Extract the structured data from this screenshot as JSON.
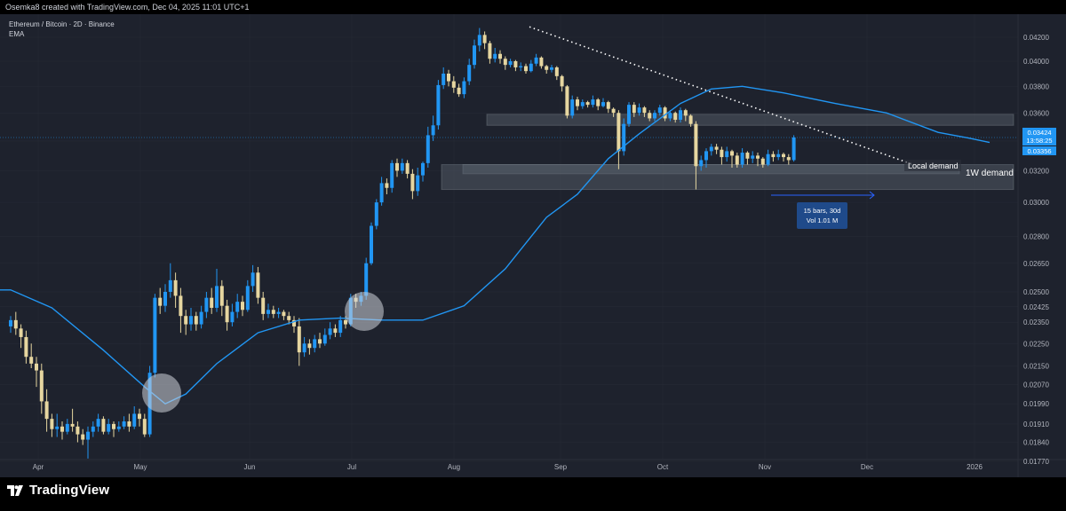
{
  "header": {
    "caption": "Osemka8 created with TradingView.com, Dec 04, 2025 11:01 UTC+1"
  },
  "legend": {
    "symbol": "Ethereum / Bitcoin · 2D · Binance",
    "indicator": "EMA"
  },
  "price_axis": {
    "ticks": [
      "0.04200",
      "0.04000",
      "0.03800",
      "0.03600",
      "0.03400",
      "0.03200",
      "0.03000",
      "0.02800",
      "0.02650",
      "0.02500",
      "0.02425",
      "0.02350",
      "0.02250",
      "0.02150",
      "0.02070",
      "0.01990",
      "0.01910",
      "0.01840",
      "0.01770"
    ],
    "last_price": "0.03424",
    "countdown": "13:58:25",
    "ema_value": "0.03356"
  },
  "time_axis": {
    "labels": [
      "Apr",
      "May",
      "Jun",
      "Jul",
      "Aug",
      "Sep",
      "Oct",
      "Nov",
      "Dec",
      "2026"
    ]
  },
  "annotations": {
    "local_demand": "Local demand",
    "weekly_demand": "1W demand",
    "measure_bars": "15 bars, 30d",
    "measure_vol": "Vol 1.01 M"
  },
  "colors": {
    "background": "#1e222d",
    "up_candle": "#2196f3",
    "down_candle": "#e6d6a0",
    "ema_line": "#2196f3",
    "zone_fill": "#5d6670",
    "trendline": "#ffffff"
  },
  "icons": {
    "logo": "tradingview-logo-icon"
  },
  "footer": {
    "brand": "TradingView"
  },
  "chart_data": {
    "type": "candlestick",
    "title": "Ethereum / Bitcoin · 2D · Binance",
    "scale": "log",
    "ylim": [
      0.0172,
      0.0432
    ],
    "x_labels": [
      "Apr",
      "May",
      "Jun",
      "Jul",
      "Aug",
      "Sep",
      "Oct",
      "Nov",
      "Dec",
      "2026"
    ],
    "series": [
      {
        "name": "EMA",
        "type": "line",
        "points": [
          [
            0,
            0.0251
          ],
          [
            8,
            0.0242
          ],
          [
            18,
            0.0222
          ],
          [
            26,
            0.0206
          ],
          [
            30,
            0.0199
          ],
          [
            34,
            0.0203
          ],
          [
            40,
            0.0216
          ],
          [
            48,
            0.023
          ],
          [
            56,
            0.0236
          ],
          [
            64,
            0.0237
          ],
          [
            72,
            0.0236
          ],
          [
            80,
            0.0236
          ],
          [
            88,
            0.0243
          ],
          [
            96,
            0.0262
          ],
          [
            104,
            0.0291
          ],
          [
            110,
            0.0305
          ],
          [
            116,
            0.0328
          ],
          [
            122,
            0.0345
          ],
          [
            130,
            0.0367
          ],
          [
            136,
            0.0378
          ],
          [
            142,
            0.038
          ],
          [
            150,
            0.0375
          ],
          [
            160,
            0.0367
          ],
          [
            170,
            0.036
          ],
          [
            180,
            0.0346
          ],
          [
            186,
            0.0342
          ],
          [
            190,
            0.0339
          ]
        ]
      }
    ],
    "candles": [
      [
        0.0233,
        0.0236,
        0.0238,
        0.023
      ],
      [
        0.0236,
        0.0232,
        0.024,
        0.0229
      ],
      [
        0.0232,
        0.0228,
        0.0234,
        0.0223
      ],
      [
        0.0228,
        0.0219,
        0.0231,
        0.0216
      ],
      [
        0.0219,
        0.0216,
        0.0225,
        0.0214
      ],
      [
        0.0216,
        0.0213,
        0.0219,
        0.0206
      ],
      [
        0.0213,
        0.02,
        0.0216,
        0.0195
      ],
      [
        0.02,
        0.0193,
        0.0205,
        0.0188
      ],
      [
        0.0193,
        0.0189,
        0.0195,
        0.0186
      ],
      [
        0.0189,
        0.019,
        0.0195,
        0.0186
      ],
      [
        0.019,
        0.0188,
        0.0192,
        0.0185
      ],
      [
        0.0188,
        0.0191,
        0.0193,
        0.0187
      ],
      [
        0.0191,
        0.019,
        0.0197,
        0.0188
      ],
      [
        0.019,
        0.0187,
        0.0192,
        0.0184
      ],
      [
        0.0187,
        0.0185,
        0.0189,
        0.0183
      ],
      [
        0.0185,
        0.0188,
        0.019,
        0.0178
      ],
      [
        0.0188,
        0.019,
        0.0192,
        0.0186
      ],
      [
        0.019,
        0.0193,
        0.0195,
        0.0188
      ],
      [
        0.0193,
        0.0188,
        0.0194,
        0.0187
      ],
      [
        0.0188,
        0.0191,
        0.0193,
        0.0187
      ],
      [
        0.0191,
        0.0189,
        0.0192,
        0.0186
      ],
      [
        0.0189,
        0.019,
        0.0192,
        0.0188
      ],
      [
        0.019,
        0.0192,
        0.0194,
        0.0189
      ],
      [
        0.0192,
        0.019,
        0.0195,
        0.0188
      ],
      [
        0.019,
        0.0195,
        0.0198,
        0.0189
      ],
      [
        0.0195,
        0.0193,
        0.0197,
        0.019
      ],
      [
        0.0193,
        0.0187,
        0.0195,
        0.0186
      ],
      [
        0.0187,
        0.0212,
        0.0215,
        0.0186
      ],
      [
        0.0212,
        0.0247,
        0.0249,
        0.021
      ],
      [
        0.0247,
        0.0243,
        0.0252,
        0.0239
      ],
      [
        0.0243,
        0.025,
        0.0254,
        0.024
      ],
      [
        0.025,
        0.0256,
        0.0265,
        0.0247
      ],
      [
        0.0256,
        0.0248,
        0.026,
        0.0242
      ],
      [
        0.0248,
        0.0238,
        0.0252,
        0.023
      ],
      [
        0.0238,
        0.0234,
        0.0241,
        0.0229
      ],
      [
        0.0234,
        0.0238,
        0.0242,
        0.0231
      ],
      [
        0.0238,
        0.0234,
        0.024,
        0.0231
      ],
      [
        0.0234,
        0.024,
        0.0243,
        0.0232
      ],
      [
        0.024,
        0.0247,
        0.025,
        0.0237
      ],
      [
        0.0247,
        0.0242,
        0.0252,
        0.0239
      ],
      [
        0.0242,
        0.0253,
        0.0262,
        0.024
      ],
      [
        0.0253,
        0.0243,
        0.0256,
        0.0238
      ],
      [
        0.0243,
        0.0235,
        0.0246,
        0.0231
      ],
      [
        0.0235,
        0.024,
        0.0244,
        0.0233
      ],
      [
        0.024,
        0.0245,
        0.0249,
        0.0237
      ],
      [
        0.0245,
        0.0241,
        0.0248,
        0.0238
      ],
      [
        0.0241,
        0.0253,
        0.0256,
        0.024
      ],
      [
        0.0253,
        0.026,
        0.0264,
        0.025
      ],
      [
        0.026,
        0.0247,
        0.0263,
        0.0244
      ],
      [
        0.0247,
        0.0239,
        0.025,
        0.0236
      ],
      [
        0.0239,
        0.0241,
        0.0244,
        0.0237
      ],
      [
        0.0241,
        0.0239,
        0.0243,
        0.0237
      ],
      [
        0.0239,
        0.024,
        0.0242,
        0.0237
      ],
      [
        0.024,
        0.0238,
        0.0241,
        0.0236
      ],
      [
        0.0238,
        0.0236,
        0.024,
        0.0234
      ],
      [
        0.0236,
        0.0233,
        0.0238,
        0.023
      ],
      [
        0.0233,
        0.0221,
        0.0237,
        0.0215
      ],
      [
        0.0221,
        0.0225,
        0.0228,
        0.0219
      ],
      [
        0.0225,
        0.0223,
        0.0227,
        0.022
      ],
      [
        0.0223,
        0.0227,
        0.0229,
        0.0221
      ],
      [
        0.0227,
        0.0225,
        0.023,
        0.0223
      ],
      [
        0.0225,
        0.0229,
        0.0232,
        0.0224
      ],
      [
        0.0229,
        0.0232,
        0.0235,
        0.0227
      ],
      [
        0.0232,
        0.023,
        0.0234,
        0.0228
      ],
      [
        0.023,
        0.0236,
        0.0238,
        0.0228
      ],
      [
        0.0236,
        0.0234,
        0.0238,
        0.0232
      ],
      [
        0.0234,
        0.0247,
        0.0249,
        0.0233
      ],
      [
        0.0247,
        0.0245,
        0.0249,
        0.0242
      ],
      [
        0.0245,
        0.0248,
        0.025,
        0.0243
      ],
      [
        0.0248,
        0.0265,
        0.0268,
        0.0246
      ],
      [
        0.0265,
        0.0286,
        0.0288,
        0.0264
      ],
      [
        0.0286,
        0.03,
        0.0302,
        0.0284
      ],
      [
        0.03,
        0.0312,
        0.0316,
        0.0298
      ],
      [
        0.0312,
        0.0309,
        0.0315,
        0.0305
      ],
      [
        0.0309,
        0.0325,
        0.0327,
        0.0306
      ],
      [
        0.0325,
        0.032,
        0.0328,
        0.0316
      ],
      [
        0.032,
        0.0325,
        0.0328,
        0.0318
      ],
      [
        0.0325,
        0.0318,
        0.0327,
        0.0315
      ],
      [
        0.0318,
        0.0307,
        0.0321,
        0.0302
      ],
      [
        0.0307,
        0.0317,
        0.0322,
        0.0304
      ],
      [
        0.0317,
        0.0325,
        0.0326,
        0.0313
      ],
      [
        0.0325,
        0.0344,
        0.035,
        0.0322
      ],
      [
        0.0344,
        0.0351,
        0.0358,
        0.034
      ],
      [
        0.0351,
        0.0381,
        0.0385,
        0.0348
      ],
      [
        0.0381,
        0.039,
        0.0395,
        0.0378
      ],
      [
        0.039,
        0.0384,
        0.0393,
        0.038
      ],
      [
        0.0384,
        0.0379,
        0.0388,
        0.0375
      ],
      [
        0.0379,
        0.0374,
        0.0382,
        0.0372
      ],
      [
        0.0374,
        0.0384,
        0.0387,
        0.0371
      ],
      [
        0.0384,
        0.0397,
        0.0402,
        0.0381
      ],
      [
        0.0397,
        0.0413,
        0.0418,
        0.0394
      ],
      [
        0.0413,
        0.0422,
        0.0428,
        0.0408
      ],
      [
        0.0422,
        0.0415,
        0.0425,
        0.041
      ],
      [
        0.0415,
        0.0402,
        0.0417,
        0.0398
      ],
      [
        0.0402,
        0.0406,
        0.0411,
        0.0399
      ],
      [
        0.0406,
        0.0402,
        0.0409,
        0.0398
      ],
      [
        0.0402,
        0.0397,
        0.0404,
        0.0393
      ],
      [
        0.0397,
        0.04,
        0.0402,
        0.0395
      ],
      [
        0.04,
        0.0395,
        0.0401,
        0.0392
      ],
      [
        0.0395,
        0.0396,
        0.0399,
        0.0392
      ],
      [
        0.0396,
        0.0392,
        0.0398,
        0.039
      ],
      [
        0.0392,
        0.0398,
        0.0401,
        0.0391
      ],
      [
        0.0398,
        0.0403,
        0.0406,
        0.0396
      ],
      [
        0.0403,
        0.0396,
        0.0404,
        0.0394
      ],
      [
        0.0396,
        0.0393,
        0.0397,
        0.039
      ],
      [
        0.0393,
        0.0395,
        0.0397,
        0.0391
      ],
      [
        0.0395,
        0.0388,
        0.0396,
        0.0385
      ],
      [
        0.0388,
        0.038,
        0.0389,
        0.0376
      ],
      [
        0.038,
        0.0358,
        0.0381,
        0.0356
      ],
      [
        0.0358,
        0.037,
        0.0373,
        0.0356
      ],
      [
        0.037,
        0.0365,
        0.0372,
        0.0362
      ],
      [
        0.0365,
        0.0368,
        0.037,
        0.0363
      ],
      [
        0.0368,
        0.0366,
        0.0369,
        0.0364
      ],
      [
        0.0366,
        0.037,
        0.0373,
        0.0364
      ],
      [
        0.037,
        0.0365,
        0.0371,
        0.0362
      ],
      [
        0.0365,
        0.0368,
        0.0371,
        0.0364
      ],
      [
        0.0368,
        0.0363,
        0.0369,
        0.036
      ],
      [
        0.0363,
        0.036,
        0.0364,
        0.0357
      ],
      [
        0.036,
        0.0333,
        0.0362,
        0.0321
      ],
      [
        0.0333,
        0.0352,
        0.0356,
        0.033
      ],
      [
        0.0352,
        0.0366,
        0.0368,
        0.035
      ],
      [
        0.0366,
        0.036,
        0.0368,
        0.0357
      ],
      [
        0.036,
        0.0364,
        0.0367,
        0.0358
      ],
      [
        0.0364,
        0.036,
        0.0365,
        0.0357
      ],
      [
        0.036,
        0.0356,
        0.0362,
        0.0354
      ],
      [
        0.0356,
        0.036,
        0.0362,
        0.0354
      ],
      [
        0.036,
        0.0364,
        0.0366,
        0.0358
      ],
      [
        0.0364,
        0.0356,
        0.0365,
        0.0354
      ],
      [
        0.0356,
        0.036,
        0.0362,
        0.0354
      ],
      [
        0.036,
        0.0355,
        0.0361,
        0.0353
      ],
      [
        0.0355,
        0.0362,
        0.0364,
        0.0353
      ],
      [
        0.0362,
        0.0358,
        0.0363,
        0.0354
      ],
      [
        0.0358,
        0.0352,
        0.0359,
        0.035
      ],
      [
        0.0352,
        0.0323,
        0.0354,
        0.0308
      ],
      [
        0.0323,
        0.0327,
        0.033,
        0.032
      ],
      [
        0.0327,
        0.0333,
        0.0335,
        0.0322
      ],
      [
        0.0333,
        0.0336,
        0.0338,
        0.033
      ],
      [
        0.0336,
        0.0334,
        0.0338,
        0.0331
      ],
      [
        0.0334,
        0.0329,
        0.0336,
        0.0324
      ],
      [
        0.0329,
        0.0333,
        0.0336,
        0.0326
      ],
      [
        0.0333,
        0.033,
        0.0334,
        0.0322
      ],
      [
        0.033,
        0.0324,
        0.0332,
        0.0322
      ],
      [
        0.0324,
        0.0332,
        0.0335,
        0.0322
      ],
      [
        0.0332,
        0.0328,
        0.0333,
        0.0324
      ],
      [
        0.0328,
        0.033,
        0.0333,
        0.0325
      ],
      [
        0.033,
        0.0328,
        0.0332,
        0.0323
      ],
      [
        0.0328,
        0.0324,
        0.0329,
        0.0322
      ],
      [
        0.0324,
        0.0331,
        0.0334,
        0.0323
      ],
      [
        0.0331,
        0.0329,
        0.0333,
        0.0326
      ],
      [
        0.0329,
        0.0331,
        0.0334,
        0.0327
      ],
      [
        0.0331,
        0.0329,
        0.0332,
        0.0326
      ],
      [
        0.0329,
        0.0327,
        0.0331,
        0.0324
      ],
      [
        0.0327,
        0.03424,
        0.0344,
        0.0326
      ]
    ],
    "zones": [
      {
        "name": "resistance",
        "from": 0.0351,
        "to": 0.0359
      },
      {
        "name": "Local demand",
        "from": 0.0318,
        "to": 0.0324
      },
      {
        "name": "1W demand",
        "from": 0.0308,
        "to": 0.0324
      }
    ],
    "trendline": {
      "from": [
        0.0429
      ],
      "to": [
        0.0324
      ]
    }
  }
}
